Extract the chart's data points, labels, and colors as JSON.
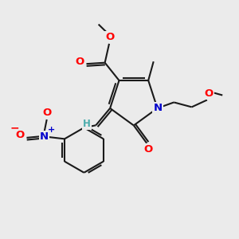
{
  "bg_color": "#ebebeb",
  "bond_color": "#1a1a1a",
  "bond_width": 1.5,
  "atom_colors": {
    "O": "#ff0000",
    "N_blue": "#0000cc",
    "H": "#4aacac",
    "C": "#1a1a1a"
  },
  "font_size": 8.5,
  "font_size_small": 7
}
